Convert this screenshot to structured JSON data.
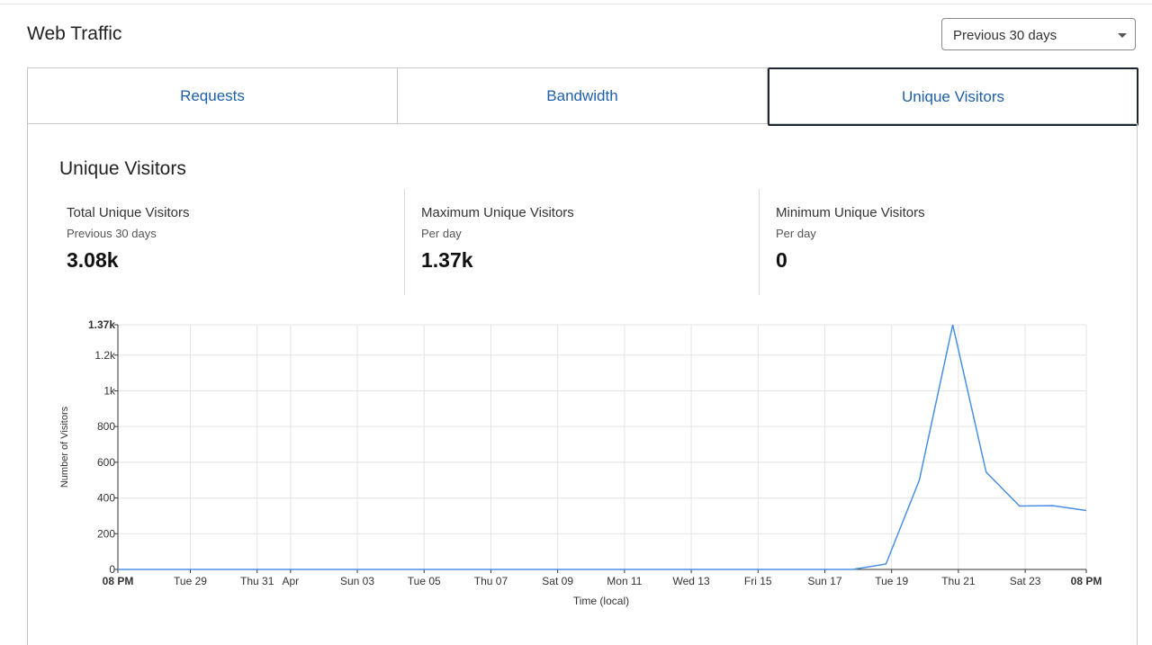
{
  "header": {
    "title": "Web Traffic",
    "range_select": "Previous 30 days"
  },
  "tabs": [
    "Requests",
    "Bandwidth",
    "Unique Visitors"
  ],
  "panel": {
    "title": "Unique Visitors",
    "stats": [
      {
        "label": "Total Unique Visitors",
        "sub": "Previous 30 days",
        "value": "3.08k"
      },
      {
        "label": "Maximum Unique Visitors",
        "sub": "Per day",
        "value": "1.37k"
      },
      {
        "label": "Minimum Unique Visitors",
        "sub": "Per day",
        "value": "0"
      }
    ]
  },
  "chart_data": {
    "type": "line",
    "x_label": "Time (local)",
    "y_label": "Number of Visitors",
    "x": [
      0,
      1,
      2,
      3,
      4,
      5,
      6,
      7,
      8,
      9,
      10,
      11,
      12,
      13,
      14,
      15,
      16,
      17,
      18,
      19,
      20,
      21,
      22,
      23,
      24,
      25,
      26,
      27,
      28,
      29
    ],
    "values": [
      0,
      0,
      0,
      0,
      0,
      0,
      0,
      0,
      0,
      0,
      0,
      0,
      0,
      0,
      0,
      0,
      0,
      0,
      0,
      0,
      0,
      0,
      0,
      30,
      500,
      1370,
      545,
      355,
      357,
      330
    ],
    "color": "#4a90e2",
    "xlim": [
      0,
      29
    ],
    "xticks": [
      {
        "value": 0,
        "label": "08 PM"
      },
      {
        "value": 2.17,
        "label": "Tue 29"
      },
      {
        "value": 4.17,
        "label": "Thu 31"
      },
      {
        "value": 5.17,
        "label": "Apr"
      },
      {
        "value": 7.17,
        "label": "Sun 03"
      },
      {
        "value": 9.17,
        "label": "Tue 05"
      },
      {
        "value": 11.17,
        "label": "Thu 07"
      },
      {
        "value": 13.17,
        "label": "Sat 09"
      },
      {
        "value": 15.17,
        "label": "Mon 11"
      },
      {
        "value": 17.17,
        "label": "Wed 13"
      },
      {
        "value": 19.17,
        "label": "Fri 15"
      },
      {
        "value": 21.17,
        "label": "Sun 17"
      },
      {
        "value": 23.17,
        "label": "Tue 19"
      },
      {
        "value": 25.17,
        "label": "Thu 21"
      },
      {
        "value": 27.17,
        "label": "Sat 23"
      },
      {
        "value": 29,
        "label": "08 PM"
      }
    ],
    "ylim": [
      0,
      1370
    ],
    "yticks": [
      0,
      200,
      400,
      600,
      800,
      {
        "value": 1000,
        "label": "1k"
      },
      {
        "value": 1200,
        "label": "1.2k"
      },
      {
        "value": 1370,
        "label": "1.37k"
      }
    ],
    "grid": true
  }
}
